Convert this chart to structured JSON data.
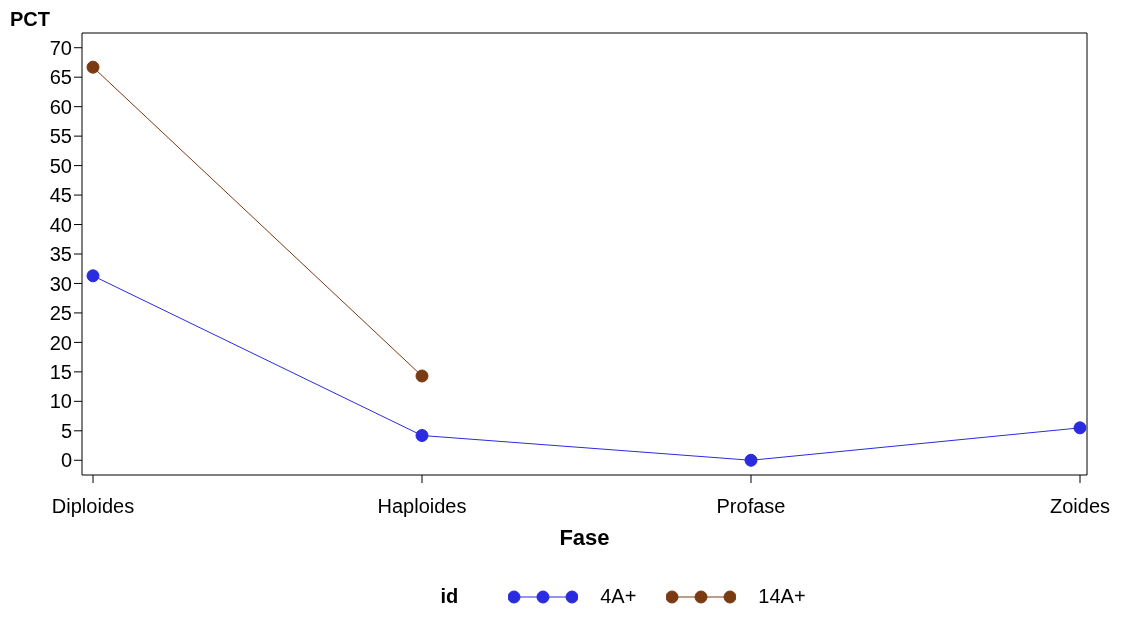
{
  "chart_data": {
    "type": "line",
    "ylabel": "PCT",
    "xlabel": "Fase",
    "legend_title": "id",
    "categories": [
      "Diploides",
      "Haploides",
      "Profase",
      "Zoides"
    ],
    "series": [
      {
        "name": "4A+",
        "color": "#2b2be0",
        "values": [
          31.3,
          4.2,
          0,
          5.5
        ]
      },
      {
        "name": "14A+",
        "color": "#7a3a12",
        "values": [
          66.7,
          14.3,
          null,
          null
        ]
      }
    ],
    "ylim": [
      -2.5,
      72.5
    ],
    "yticks": [
      0,
      5,
      10,
      15,
      20,
      25,
      30,
      35,
      40,
      45,
      50,
      55,
      60,
      65,
      70
    ],
    "grid": false,
    "legend": "bottom",
    "marker": "circle",
    "line_style": "solid"
  }
}
